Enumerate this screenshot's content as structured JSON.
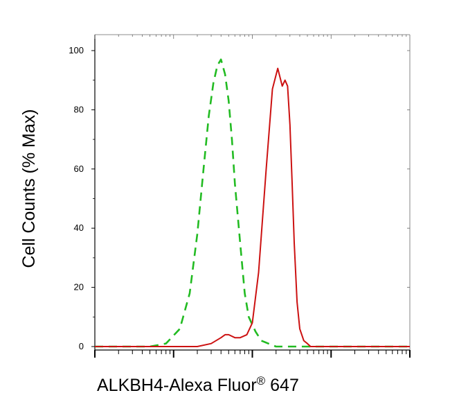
{
  "chart_data": {
    "type": "line",
    "title": "",
    "xlabel": "ALKBH4-Alexa Fluor",
    "xlabel_mark": "®",
    "xlabel_suffix": " 647",
    "ylabel": "Cell Counts (% Max)",
    "xscale": "log",
    "xlim": [
      1,
      10000
    ],
    "ylim": [
      0,
      105
    ],
    "yticks": [
      0,
      20,
      40,
      60,
      80,
      100
    ],
    "grid": false,
    "legend": "none",
    "series": [
      {
        "color": "#22bb22",
        "style": "dashed",
        "x": [
          1,
          3,
          5,
          8,
          12,
          16,
          20,
          24,
          28,
          32,
          36,
          40,
          45,
          50,
          55,
          60,
          70,
          80,
          90,
          110,
          130,
          160,
          200,
          300,
          1000,
          10000
        ],
        "y": [
          0,
          0,
          0,
          1,
          6,
          18,
          38,
          60,
          78,
          89,
          95,
          97,
          92,
          83,
          70,
          55,
          35,
          18,
          10,
          5,
          2,
          1,
          0,
          0,
          0,
          0
        ]
      },
      {
        "color": "#cc1111",
        "style": "solid",
        "x": [
          1,
          10,
          20,
          30,
          40,
          45,
          50,
          60,
          70,
          85,
          100,
          120,
          150,
          180,
          210,
          240,
          260,
          280,
          300,
          320,
          340,
          370,
          400,
          450,
          500,
          550,
          600,
          700,
          1000,
          10000
        ],
        "y": [
          0,
          0,
          0,
          1,
          3,
          4,
          4,
          3,
          3,
          4,
          8,
          25,
          60,
          87,
          94,
          88,
          90,
          88,
          75,
          55,
          35,
          15,
          6,
          2,
          1,
          0,
          0,
          0,
          0,
          0
        ]
      }
    ]
  }
}
